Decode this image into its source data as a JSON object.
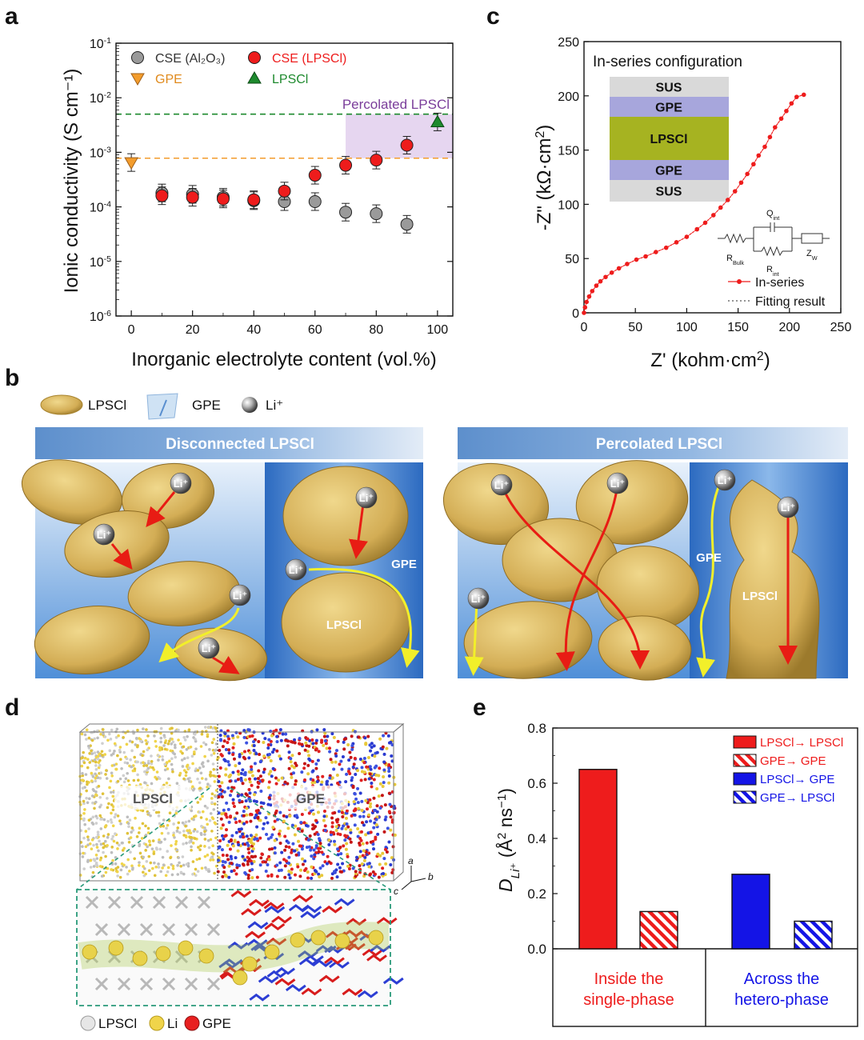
{
  "figure": {
    "panel_letters": [
      "a",
      "b",
      "c",
      "d",
      "e"
    ],
    "colors": {
      "red": "#ee1c1c",
      "gray": "#9a9a9a",
      "orange": "#f39c2c",
      "green": "#1e8a2e",
      "blue": "#1414e6",
      "purple_fill": "#e6d6f0",
      "purple_text": "#7a3d9a",
      "lpscl": "#d9b35a",
      "gpe_band": "#a7a6dc",
      "lpscl_band": "#a6b321",
      "sus_band": "#d9d9d9",
      "blue_bg": "#3f7fcf",
      "yellow_arrow": "#f2ef2a",
      "ion": "#6a6a6a"
    }
  },
  "panel_a": {
    "ylabel": "Ionic conductivity (S cm⁻¹)",
    "xlabel": "Inorganic electrolyte content (vol.%)",
    "percolated_label": "Percolated LPSCl",
    "legend": [
      {
        "label": "CSE (Al₂O₃)",
        "marker": "circle",
        "color": "gray"
      },
      {
        "label": "CSE (LPSCl)",
        "marker": "circle",
        "color": "red"
      },
      {
        "label": "GPE",
        "marker": "triangle-down",
        "color": "orange"
      },
      {
        "label": "LPSCl",
        "marker": "triangle-up",
        "color": "green"
      }
    ]
  },
  "panel_b": {
    "legend": [
      {
        "label": "LPSCl",
        "icon": "lpscl-particle-icon"
      },
      {
        "label": "GPE",
        "icon": "gpe-film-icon"
      },
      {
        "label": "Li⁺",
        "icon": "li-ion-icon"
      }
    ],
    "left_title": "Disconnected LPSCl",
    "right_title": "Percolated LPSCl",
    "ion_label": "Li⁺",
    "gpe_label": "GPE",
    "lpscl_label": "LPSCl"
  },
  "panel_c": {
    "title": "In-series configuration",
    "layers": [
      "SUS",
      "GPE",
      "LPSCl",
      "GPE",
      "SUS"
    ],
    "ylabel": "-Z\" (kΩ·cm²)",
    "xlabel": "Z' (kohm·cm²)",
    "legend": [
      "In-series",
      "Fitting result"
    ],
    "circuit_labels": [
      "R_Bulk",
      "Q_int",
      "R_int",
      "Z_W"
    ]
  },
  "panel_d": {
    "lpscl_label": "LPSCl",
    "gpe_label": "GPE",
    "axis_labels": [
      "a",
      "b",
      "c"
    ],
    "legend": [
      "LPSCl",
      "Li",
      "GPE"
    ]
  },
  "panel_e": {
    "ylabel": "D_Li⁺ (Å² ns⁻¹)",
    "group_labels": [
      [
        "Inside the",
        "single-phase"
      ],
      [
        "Across the",
        "hetero-phase"
      ]
    ],
    "legend": [
      "LPSCl→ LPSCl",
      "GPE→ GPE",
      "LPSCl→ GPE",
      "GPE→ LPSCl"
    ]
  },
  "chart_data": [
    {
      "id": "a",
      "type": "scatter",
      "yscale": "log",
      "xlim": [
        -5,
        105
      ],
      "ylim_exp": [
        -6,
        -1
      ],
      "xticks": [
        0,
        20,
        40,
        60,
        80,
        100
      ],
      "xlabel": "Inorganic electrolyte content (vol.%)",
      "ylabel": "Ionic conductivity (S cm⁻¹)",
      "series": [
        {
          "name": "CSE (Al₂O₃)",
          "marker": "circle",
          "color": "gray",
          "x": [
            10,
            20,
            30,
            40,
            50,
            60,
            70,
            80,
            90
          ],
          "y": [
            0.00018,
            0.00017,
            0.00015,
            0.00013,
            0.000125,
            0.000125,
            8e-05,
            7.5e-05,
            4.8e-05
          ]
        },
        {
          "name": "CSE (LPSCl)",
          "marker": "circle",
          "color": "red",
          "x": [
            10,
            20,
            30,
            40,
            50,
            60,
            70,
            80,
            90
          ],
          "y": [
            0.00016,
            0.00015,
            0.00014,
            0.000135,
            0.000195,
            0.00038,
            0.00058,
            0.00072,
            0.00135
          ]
        },
        {
          "name": "GPE",
          "marker": "triangle-down",
          "color": "orange",
          "x": [
            0
          ],
          "y": [
            0.00065
          ]
        },
        {
          "name": "LPSCl",
          "marker": "triangle-up",
          "color": "green",
          "x": [
            100
          ],
          "y": [
            0.0036
          ]
        }
      ],
      "reference_lines": [
        {
          "y": 0.005,
          "color": "green",
          "style": "dashed"
        },
        {
          "y": 0.00078,
          "color": "orange",
          "style": "dashed"
        }
      ],
      "shaded_region": {
        "x": [
          70,
          105
        ],
        "y": [
          0.00078,
          0.005
        ],
        "label": "Percolated LPSCl"
      }
    },
    {
      "id": "c",
      "type": "line",
      "xlim": [
        0,
        250
      ],
      "ylim": [
        0,
        250
      ],
      "xticks": [
        0,
        50,
        100,
        150,
        200,
        250
      ],
      "yticks": [
        0,
        50,
        100,
        150,
        200,
        250
      ],
      "xlabel": "Z' (kohm·cm²)",
      "ylabel": "-Z\" (kΩ·cm²)",
      "series": [
        {
          "name": "In-series",
          "color": "red",
          "x": [
            0,
            1,
            2.5,
            5,
            8,
            12,
            16,
            21,
            27,
            34,
            42,
            51,
            60,
            70,
            80,
            90,
            100,
            110,
            118,
            126,
            133,
            140,
            147,
            153,
            159,
            165,
            170,
            176,
            181,
            186,
            192,
            197,
            202,
            207,
            214
          ],
          "y": [
            0,
            5,
            10,
            15,
            20,
            25,
            29,
            33,
            37,
            41,
            45,
            49,
            52,
            56,
            60,
            65,
            70,
            77,
            83,
            90,
            97,
            104,
            112,
            120,
            128,
            137,
            145,
            153,
            162,
            171,
            179,
            186,
            193,
            199,
            201
          ]
        }
      ],
      "inset_title": "In-series configuration"
    },
    {
      "id": "e",
      "type": "bar",
      "ylim": [
        0,
        0.8
      ],
      "yticks": [
        0,
        0.2,
        0.4,
        0.6,
        0.8
      ],
      "categories": [
        "Inside the single-phase",
        "Across the hetero-phase"
      ],
      "ylabel": "D_Li⁺ (Å² ns⁻¹)",
      "series": [
        {
          "name": "LPSCl→ LPSCl",
          "color": "red",
          "hatch": false,
          "values": [
            0.65,
            null
          ]
        },
        {
          "name": "GPE→ GPE",
          "color": "red",
          "hatch": true,
          "values": [
            0.135,
            null
          ]
        },
        {
          "name": "LPSCl→ GPE",
          "color": "blue",
          "hatch": false,
          "values": [
            null,
            0.27
          ]
        },
        {
          "name": "GPE→ LPSCl",
          "color": "blue",
          "hatch": true,
          "values": [
            null,
            0.1
          ]
        }
      ]
    }
  ]
}
